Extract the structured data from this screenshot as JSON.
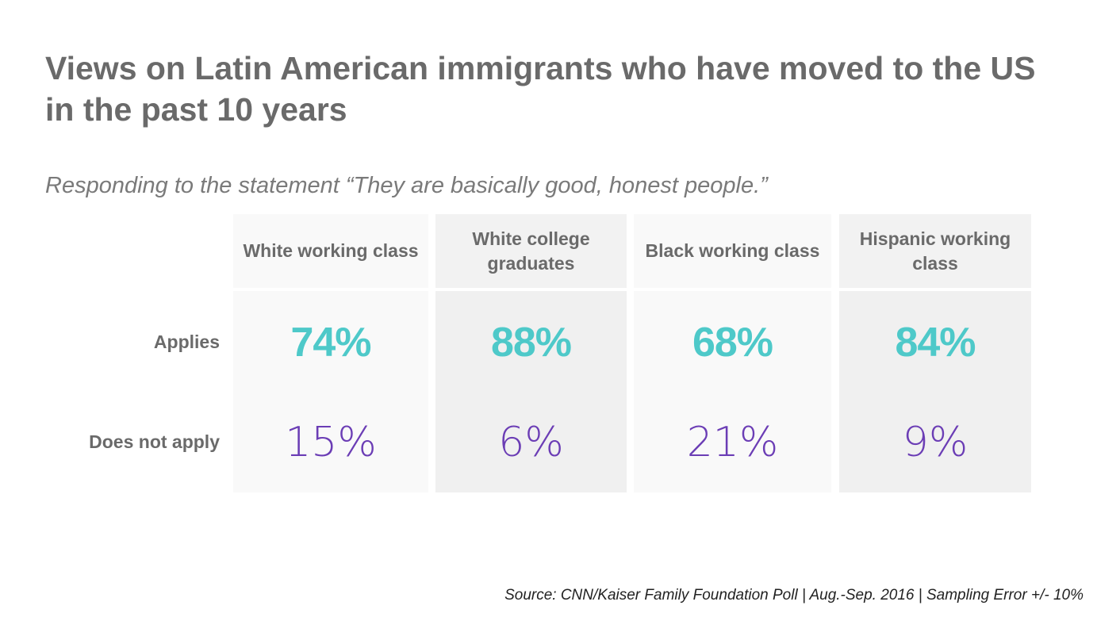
{
  "title": "Views on Latin American immigrants who have moved to the US in the past 10 years",
  "subtitle": "Responding to the statement “They are basically good, honest people.”",
  "source": "Source: CNN/Kaiser Family Foundation Poll | Aug.-Sep. 2016 | Sampling Error +/- 10%",
  "colors": {
    "applies": "#4ec9c9",
    "does_not_apply": "#6b3db5",
    "text": "#6a6a6a"
  },
  "chart_data": {
    "type": "table",
    "title": "Views on Latin American immigrants who have moved to the US in the past 10 years",
    "subtitle": "Responding to the statement “They are basically good, honest people.”",
    "columns": [
      "White working class",
      "White college graduates",
      "Black working class",
      "Hispanic working class"
    ],
    "rows": [
      {
        "label": "Applies",
        "values": [
          "74%",
          "88%",
          "68%",
          "84%"
        ],
        "numeric": [
          74,
          88,
          68,
          84
        ]
      },
      {
        "label": "Does not apply",
        "values": [
          "15%",
          "6%",
          "21%",
          "9%"
        ],
        "numeric": [
          15,
          6,
          21,
          9
        ]
      }
    ],
    "unit": "%"
  }
}
